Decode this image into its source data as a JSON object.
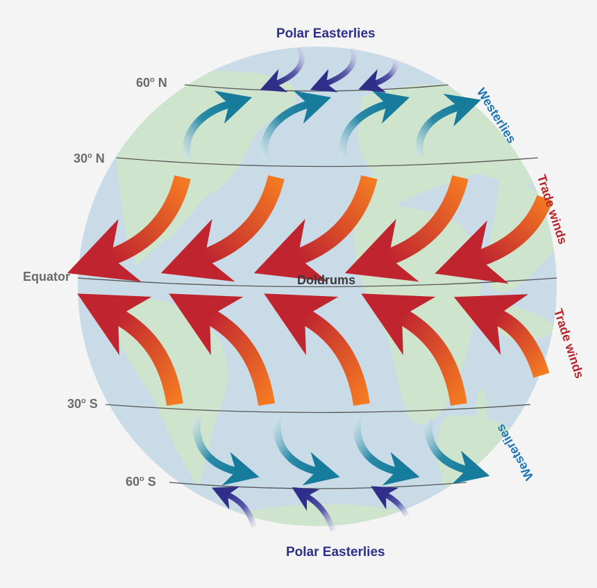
{
  "labels": {
    "polar_top": "Polar Easterlies",
    "polar_bottom": "Polar Easterlies",
    "westerlies_north": "Westerlies",
    "westerlies_south": "Westerlies",
    "trade_north": "Trade winds",
    "trade_south": "Trade winds",
    "doldrums": "Doldrums",
    "equator": "Equator",
    "lat_60n_num": "60",
    "lat_60n_sup": "o",
    "lat_60n_dir": "N",
    "lat_30n_num": "30",
    "lat_30n_sup": "o",
    "lat_30n_dir": "N",
    "lat_30s_num": "30",
    "lat_30s_sup": "o",
    "lat_30s_dir": "S",
    "lat_60s_num": "60",
    "lat_60s_sup": "o",
    "lat_60s_dir": "S"
  },
  "colors": {
    "background": "#f4f4f4",
    "ocean": "#c9dbe6",
    "land": "#cfe4cc",
    "trade_arrow_start": "#f07424",
    "trade_arrow_end": "#bf2430",
    "westerly_arrow": "#177c9c",
    "polar_arrow": "#2f2f8a",
    "latitude_line": "#555555"
  }
}
